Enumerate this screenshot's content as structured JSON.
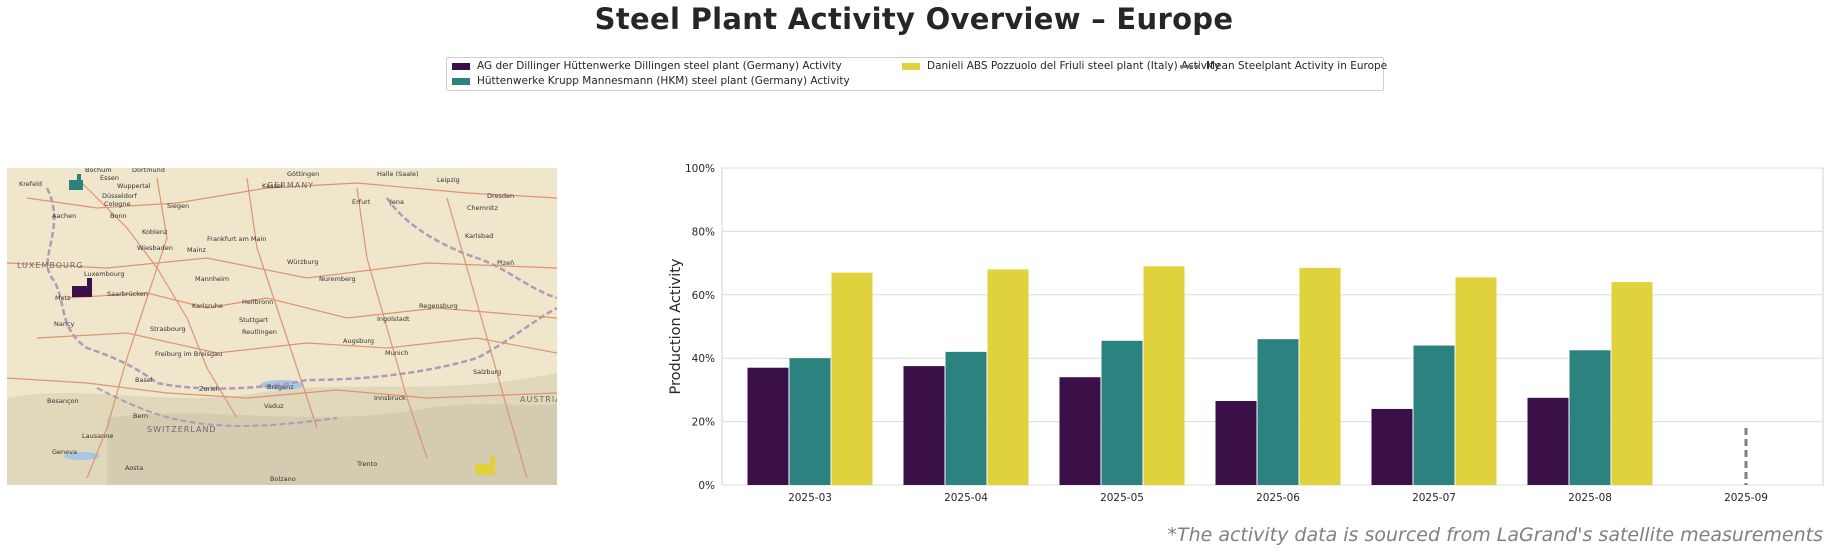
{
  "title": "Steel Plant Activity Overview – Europe",
  "footnote": "*The activity data is sourced from LaGrand's satellite measurements",
  "legend": {
    "items": [
      {
        "label": "AG der Dillinger Hüttenwerke Dillingen steel plant (Germany) Activity",
        "color": "#3b0f48"
      },
      {
        "label": "Hüttenwerke Krupp Mannesmann (HKM) steel plant (Germany) Activity",
        "color": "#2b827f"
      },
      {
        "label": "Danieli ABS Pozzuolo del Friuli steel plant (Italy) Activity",
        "color": "#e0d23c"
      },
      {
        "label": "Mean Steelplant Activity in Europe",
        "color": "#7f7f7f"
      }
    ]
  },
  "map": {
    "labels": [
      {
        "text": "Göttingen"
      },
      {
        "text": "Halle (Saale)"
      },
      {
        "text": "GERMANY"
      },
      {
        "text": "Leipzig"
      },
      {
        "text": "Kassel"
      },
      {
        "text": "Dresden"
      },
      {
        "text": "Erfurt"
      },
      {
        "text": "Jena"
      },
      {
        "text": "Chemnitz"
      },
      {
        "text": "Wuppertal"
      },
      {
        "text": "Düsseldorf"
      },
      {
        "text": "Cologne"
      },
      {
        "text": "Siegen"
      },
      {
        "text": "Bonn"
      },
      {
        "text": "Aachen"
      },
      {
        "text": "Koblenz"
      },
      {
        "text": "Wiesbaden"
      },
      {
        "text": "Frankfurt am Main"
      },
      {
        "text": "Mainz"
      },
      {
        "text": "Würzburg"
      },
      {
        "text": "Karlsbad"
      },
      {
        "text": "Plzeň"
      },
      {
        "text": "LUXEMBOURG"
      },
      {
        "text": "Luxembourg"
      },
      {
        "text": "Mannheim"
      },
      {
        "text": "Nuremberg"
      },
      {
        "text": "Saarbrücken"
      },
      {
        "text": "Metz"
      },
      {
        "text": "Karlsruhe"
      },
      {
        "text": "Heilbronn"
      },
      {
        "text": "Regensburg"
      },
      {
        "text": "Nancy"
      },
      {
        "text": "Stuttgart"
      },
      {
        "text": "Ingolstadt"
      },
      {
        "text": "Strasbourg"
      },
      {
        "text": "Reutlingen"
      },
      {
        "text": "Augsburg"
      },
      {
        "text": "Freiburg im Breisgau"
      },
      {
        "text": "Munich"
      },
      {
        "text": "Salzburg"
      },
      {
        "text": "Basel"
      },
      {
        "text": "Zurich"
      },
      {
        "text": "Bregenz"
      },
      {
        "text": "Innsbruck"
      },
      {
        "text": "Vaduz"
      },
      {
        "text": "AUSTRIA"
      },
      {
        "text": "Besançon"
      },
      {
        "text": "Bern"
      },
      {
        "text": "SWITZERLAND"
      },
      {
        "text": "Lausanne"
      },
      {
        "text": "Geneva"
      },
      {
        "text": "Aosta"
      },
      {
        "text": "Trento"
      },
      {
        "text": "Bolzano"
      },
      {
        "text": "Bochum"
      },
      {
        "text": "Dortmund"
      },
      {
        "text": "Krefeld"
      },
      {
        "text": "Essen"
      }
    ],
    "markers": [
      {
        "name": "hkm-plant-marker",
        "color": "#2b827f"
      },
      {
        "name": "dillinger-plant-marker",
        "color": "#3b0f48"
      },
      {
        "name": "danieli-plant-marker",
        "color": "#e0d23c"
      }
    ]
  },
  "chart_data": {
    "type": "bar",
    "categories": [
      "2025-03",
      "2025-04",
      "2025-05",
      "2025-06",
      "2025-07",
      "2025-08",
      "2025-09"
    ],
    "series": [
      {
        "name": "AG der Dillinger Hüttenwerke Dillingen steel plant (Germany) Activity",
        "color": "#3b0f48",
        "values": [
          37,
          37.5,
          34,
          26.5,
          24,
          27.5,
          null
        ]
      },
      {
        "name": "Hüttenwerke Krupp Mannesmann (HKM) steel plant (Germany) Activity",
        "color": "#2b827f",
        "values": [
          40,
          42,
          45.5,
          46,
          44,
          42.5,
          null
        ]
      },
      {
        "name": "Danieli ABS Pozzuolo del Friuli steel plant (Italy) Activity",
        "color": "#e0d23c",
        "values": [
          67,
          68,
          69,
          68.5,
          65.5,
          64,
          null
        ]
      }
    ],
    "mean_line": {
      "name": "Mean Steelplant Activity in Europe",
      "category": "2025-09",
      "value": 18,
      "color": "#7f7f7f",
      "style": "dashed"
    },
    "ylabel": "Production Activity",
    "xlabel": "",
    "ylim": [
      0,
      100
    ],
    "yticks": [
      "0%",
      "20%",
      "40%",
      "60%",
      "80%",
      "100%"
    ],
    "grid": true,
    "legend_position": "top-center"
  }
}
